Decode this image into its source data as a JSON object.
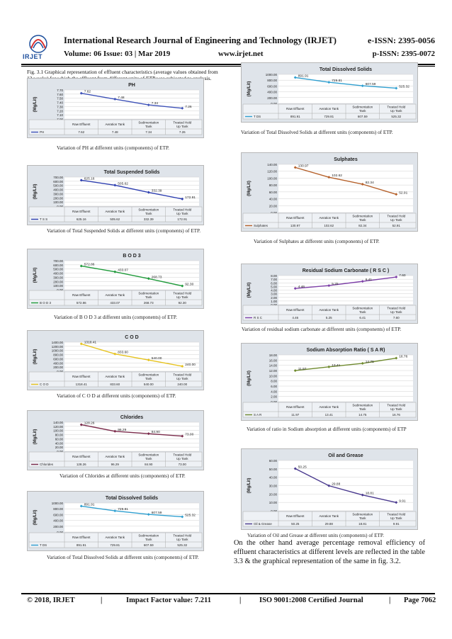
{
  "header": {
    "journal": "International Research Journal of Engineering and Technology (IRJET)",
    "eissn": "e-ISSN: 2395-0056",
    "volume": "Volume: 06 Issue: 03 | Mar 2019",
    "url": "www.irjet.net",
    "pissn": "p-ISSN: 2395-0072",
    "logo_text": "IRJET"
  },
  "figure_title": "Fig. 3.1  Graphical representation of effluent characteristics (average values obtained from 12 weeks) for which the effluent from different units of ETP was subjected to analysis.",
  "paragraph": "On the other hand average percentage removal efficiency of effluent characteristics at different levels are reflected in the table 3.3 & the graphical representation of the same in fig. 3.2.",
  "footer": {
    "copyright": "© 2018, IRJET",
    "sep1": "|",
    "impact": "Impact Factor value: 7.211",
    "sep2": "|",
    "iso": "ISO 9001:2008 Certified Journal",
    "sep3": "|",
    "page": "Page 7062"
  },
  "chart_data": [
    {
      "id": "ph",
      "type": "line",
      "title": "PH",
      "ylabel": "(Mg/Lit)",
      "ylim": [
        7.0,
        7.7
      ],
      "yticks": [
        "7.70",
        "7.60",
        "7.50",
        "7.40",
        "7.30",
        "7.20",
        "7.10",
        "7.00"
      ],
      "categories": [
        "Raw Effluent",
        "Aeration Tank",
        "Sedimentation Tank",
        "Treated Hold Up Tank"
      ],
      "series": [
        {
          "name": "PH",
          "values": [
            7.62,
            7.48,
            7.34,
            7.26
          ],
          "labels": [
            "7.62",
            "7.48",
            "7.34",
            "7.26"
          ],
          "color": "#3e52b8"
        }
      ],
      "caption": "Variation of PH at different units (components) of ETP."
    },
    {
      "id": "tss",
      "type": "line",
      "title": "Total Suspended Solids",
      "ylabel": "(Mg/Lit)",
      "ylim": [
        0,
        700
      ],
      "yticks": [
        "700.00",
        "600.00",
        "500.00",
        "400.00",
        "300.00",
        "200.00",
        "100.00",
        "0.00"
      ],
      "categories": [
        "Raw Effluent",
        "Aeration Tank",
        "Sedimentation Tank",
        "Treated Hold Up Tank"
      ],
      "series": [
        {
          "name": "T S S",
          "values": [
            625.16,
            505.62,
            332.39,
            172.91
          ],
          "labels": [
            "625.16",
            "505.62",
            "332.39",
            "172.91"
          ],
          "color": "#2e3fb0"
        }
      ],
      "caption": "Variation of Total Suspended Solids at different units (components) of ETP."
    },
    {
      "id": "bod",
      "type": "line",
      "title": "B O D 3",
      "ylabel": "(Mg/Lit)",
      "ylim": [
        0,
        700
      ],
      "yticks": [
        "700.00",
        "600.00",
        "500.00",
        "400.00",
        "300.00",
        "200.00",
        "100.00",
        "0.00"
      ],
      "categories": [
        "Raw Effluent",
        "Aeration Tank",
        "Sedimentation Tank",
        "Treated Hold Up Tank"
      ],
      "series": [
        {
          "name": "B O D 3",
          "values": [
            572.86,
            433.07,
            268.73,
            92.3
          ],
          "labels": [
            "572.86",
            "433.07",
            "268.73",
            "92.30"
          ],
          "color": "#1f9a3a"
        }
      ],
      "caption": "Variation of B O D 3 at different units (components) of ETP."
    },
    {
      "id": "cod",
      "type": "line",
      "title": "C O D",
      "ylabel": "(Mg/Lit)",
      "ylim": [
        0,
        1400
      ],
      "yticks": [
        "1400.00",
        "1200.00",
        "1000.00",
        "800.00",
        "600.00",
        "400.00",
        "200.00",
        "0.00"
      ],
      "categories": [
        "Raw Effluent",
        "Aeration Tank",
        "Sedimentation Tank",
        "Treated Hold Up Tank"
      ],
      "series": [
        {
          "name": "C O D",
          "values": [
            1318.41,
            833.6,
            540.0,
            240.0
          ],
          "labels": [
            "1318.41",
            "833.60",
            "540.00",
            "240.00"
          ],
          "color": "#e6c21c"
        }
      ],
      "caption": "Variation of C O D at different units (components) of ETP."
    },
    {
      "id": "chl",
      "type": "line",
      "title": "Chlorides",
      "ylabel": "(Mg/Lit)",
      "ylim": [
        0,
        140
      ],
      "yticks": [
        "140.00",
        "120.00",
        "100.00",
        "80.00",
        "60.00",
        "40.00",
        "20.00",
        "0.00"
      ],
      "categories": [
        "Raw Effluent",
        "Aeration Tank",
        "Sedimentation Tank",
        "Treated Hold Up Tank"
      ],
      "series": [
        {
          "name": "Chlorides",
          "values": [
            128.26,
            96.29,
            84.9,
            73.0
          ],
          "labels": [
            "128.26",
            "96.29",
            "84.90",
            "73.00"
          ],
          "color": "#7a2a4a"
        }
      ],
      "caption": "Variation of Chlorides at different units (components) of ETP."
    },
    {
      "id": "tds1",
      "type": "line",
      "title": "Total Dissolved Solids",
      "ylabel": "(Mg/Lit)",
      "ylim": [
        0,
        1000
      ],
      "yticks": [
        "1000.00",
        "800.00",
        "600.00",
        "400.00",
        "200.00",
        "0.00"
      ],
      "categories": [
        "Raw Effluent",
        "Aeration Tank",
        "Sedimentation Tank",
        "Treated Hold Up Tank"
      ],
      "series": [
        {
          "name": "T DS",
          "values": [
            891.91,
            729.81,
            607.59,
            525.32
          ],
          "labels": [
            "891.91",
            "729.81",
            "607.59",
            "525.32"
          ],
          "color": "#2f9fd0"
        }
      ],
      "caption": "Variation of Total Dissolved Solids at different units (components) of ETP."
    },
    {
      "id": "tds2",
      "type": "line",
      "title": "Total Dissolved Solids",
      "ylabel": "(Mg/Lit)",
      "ylim": [
        0,
        1000
      ],
      "yticks": [
        "1000.00",
        "800.00",
        "600.00",
        "400.00",
        "200.00",
        "0.00"
      ],
      "categories": [
        "Raw Effluent",
        "Aeration Tank",
        "Sedimentation Tank",
        "Treated Hold Up Tank"
      ],
      "series": [
        {
          "name": "T DS",
          "values": [
            891.91,
            729.81,
            607.59,
            525.32
          ],
          "labels": [
            "891.91",
            "729.81",
            "607.59",
            "525.32"
          ],
          "color": "#2f9fd0"
        }
      ],
      "caption": "Variation of Total Dissolved Solids at different units (components) of ETP."
    },
    {
      "id": "sul",
      "type": "line",
      "title": "Sulphates",
      "ylabel": "(Mg/Lit)",
      "ylim": [
        0,
        140
      ],
      "yticks": [
        "140.00",
        "120.00",
        "100.00",
        "80.00",
        "60.00",
        "40.00",
        "20.00",
        "0.00"
      ],
      "categories": [
        "Raw Effluent",
        "Aeration Tank",
        "Sedimentation Tank",
        "Treated Hold Up Tank"
      ],
      "series": [
        {
          "name": "Sulphates",
          "values": [
            130.97,
            102.62,
            82.34,
            52.91
          ],
          "labels": [
            "130.97",
            "102.62",
            "82.34",
            "52.91"
          ],
          "color": "#b5602a"
        }
      ],
      "caption": "Variation of Sulphates at different units (components) of ETP."
    },
    {
      "id": "rsc",
      "type": "line",
      "title": "Residual Sodium Carbonate ( R S C )",
      "ylabel": "(Mg/Lit)",
      "ylim": [
        0,
        8
      ],
      "yticks": [
        "8.00",
        "7.00",
        "6.00",
        "5.00",
        "4.00",
        "3.00",
        "2.00",
        "1.00",
        "0.00"
      ],
      "categories": [
        "Raw Effluent",
        "Aeration Tank",
        "Sedimentation Tank",
        "Treated Hold Up Tank"
      ],
      "series": [
        {
          "name": "R S C",
          "values": [
            4.46,
            5.25,
            6.41,
            7.6
          ],
          "labels": [
            "4.46",
            "5.25",
            "6.41",
            "7.60"
          ],
          "color": "#7d3fa8"
        }
      ],
      "caption": "Variation of residual sodium carbonate at different units (components) of ETP."
    },
    {
      "id": "sar",
      "type": "line",
      "title": "Sodium Absorption Ratio  ( S A R)",
      "ylabel": "(Mg/Lit)",
      "ylim": [
        0,
        18
      ],
      "yticks": [
        "18.00",
        "16.00",
        "14.00",
        "12.00",
        "10.00",
        "8.00",
        "6.00",
        "4.00",
        "2.00",
        "0.00"
      ],
      "categories": [
        "Raw Effluent",
        "Aeration Tank",
        "Sedimentation Tank",
        "Treated Hold Up Tank"
      ],
      "series": [
        {
          "name": "S A R",
          "values": [
            11.97,
            13.41,
            14.75,
            16.76
          ],
          "labels": [
            "11.97",
            "13.41",
            "14.75",
            "16.76"
          ],
          "color": "#6f8a2e"
        }
      ],
      "caption": "Variation of ratio in Sodium absorption at different units (components) of ETP"
    },
    {
      "id": "oil",
      "type": "line",
      "title": "Oil and Grease",
      "ylabel": "(Mg/Lit)",
      "ylim": [
        0,
        60
      ],
      "yticks": [
        "60.00",
        "50.00",
        "40.00",
        "30.00",
        "20.00",
        "10.00",
        "0.00"
      ],
      "categories": [
        "Raw Effluent",
        "Aeration Tank",
        "Sedimentation Tank",
        "Treated Hold Up Tank"
      ],
      "series": [
        {
          "name": "Oil & Grease",
          "values": [
            50.25,
            29.88,
            18.81,
            9.91
          ],
          "labels": [
            "50.25",
            "29.88",
            "18.81",
            "9.91"
          ],
          "color": "#4a3a8f"
        }
      ],
      "caption": "Variation of Oil and Grease at different units (components) of ETP."
    }
  ]
}
